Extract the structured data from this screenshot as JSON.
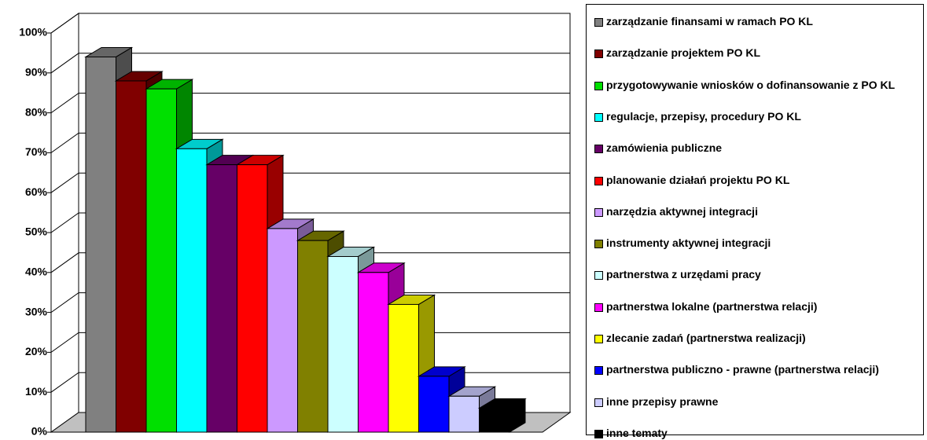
{
  "chart_data": {
    "type": "bar3d",
    "series": [
      {
        "name": "zarządzanie finansami w ramach PO KL",
        "color": "#808080",
        "values": [
          94
        ]
      },
      {
        "name": "zarządzanie projektem PO KL",
        "color": "#800000",
        "values": [
          88
        ]
      },
      {
        "name": "przygotowywanie wniosków o dofinansowanie z PO KL",
        "color": "#00e000",
        "values": [
          86
        ]
      },
      {
        "name": "regulacje, przepisy, procedury PO KL",
        "color": "#00ffff",
        "values": [
          71
        ]
      },
      {
        "name": "zamówienia publiczne",
        "color": "#660066",
        "values": [
          67
        ]
      },
      {
        "name": "planowanie działań projektu PO KL",
        "color": "#ff0000",
        "values": [
          67
        ]
      },
      {
        "name": "narzędzia aktywnej integracji",
        "color": "#cc99ff",
        "values": [
          51
        ]
      },
      {
        "name": "instrumenty aktywnej integracji",
        "color": "#808000",
        "values": [
          48
        ]
      },
      {
        "name": "partnerstwa z urzędami pracy",
        "color": "#ccffff",
        "values": [
          44
        ]
      },
      {
        "name": "partnerstwa lokalne (partnerstwa relacji)",
        "color": "#ff00ff",
        "values": [
          40
        ]
      },
      {
        "name": "zlecanie zadań (partnerstwa realizacji)",
        "color": "#ffff00",
        "values": [
          32
        ]
      },
      {
        "name": "partnerstwa publiczno - prawne (partnerstwa relacji)",
        "color": "#0000ff",
        "values": [
          14
        ]
      },
      {
        "name": "inne przepisy prawne",
        "color": "#ccccff",
        "values": [
          9
        ]
      },
      {
        "name": "inne tematy",
        "color": "#000000",
        "values": [
          6
        ]
      }
    ],
    "ylim": [
      0,
      100
    ],
    "yticks": [
      {
        "value": 0,
        "label": "0%"
      },
      {
        "value": 10,
        "label": "10%"
      },
      {
        "value": 20,
        "label": "20%"
      },
      {
        "value": 30,
        "label": "30%"
      },
      {
        "value": 40,
        "label": "40%"
      },
      {
        "value": 50,
        "label": "50%"
      },
      {
        "value": 60,
        "label": "60%"
      },
      {
        "value": 70,
        "label": "70%"
      },
      {
        "value": 80,
        "label": "80%"
      },
      {
        "value": 90,
        "label": "90%"
      },
      {
        "value": 100,
        "label": "100%"
      }
    ],
    "grid": true,
    "legend": "right"
  }
}
